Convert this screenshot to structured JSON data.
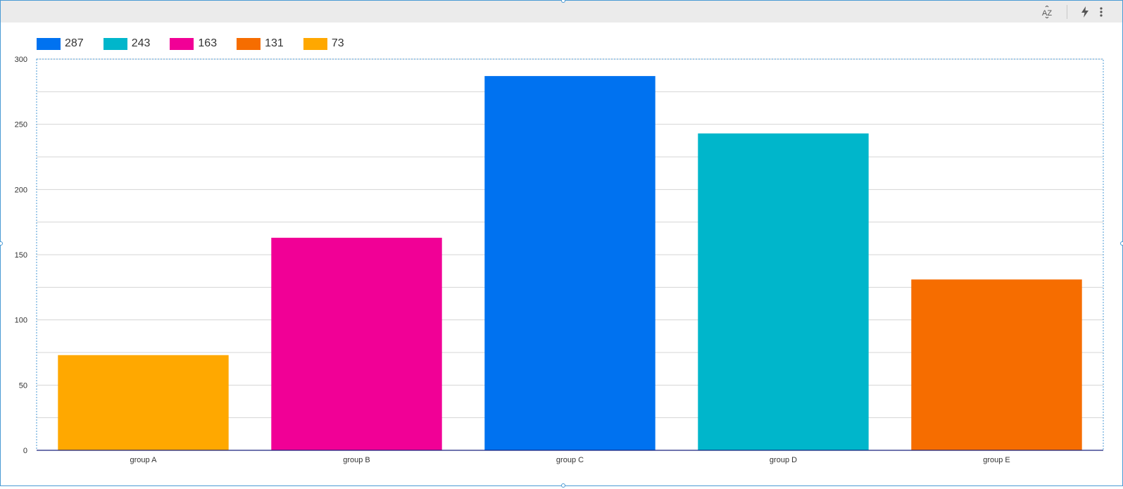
{
  "toolbar": {
    "sort_icon": "sort-az-icon",
    "bolt_icon": "lightning-icon",
    "more_icon": "more-vert-icon"
  },
  "colors": {
    "blue": "#0072f0",
    "teal": "#00b6cb",
    "magenta": "#f10096",
    "orange": "#f66d00",
    "amber": "#ffa800",
    "selection": "#4a9ad4",
    "toolbar_bg": "#ebebeb"
  },
  "legend": [
    {
      "label": "287",
      "color": "#0072f0"
    },
    {
      "label": "243",
      "color": "#00b6cb"
    },
    {
      "label": "163",
      "color": "#f10096"
    },
    {
      "label": "131",
      "color": "#f66d00"
    },
    {
      "label": "73",
      "color": "#ffa800"
    }
  ],
  "chart_data": {
    "type": "bar",
    "categories": [
      "group A",
      "group B",
      "group C",
      "group D",
      "group E"
    ],
    "values": [
      73,
      163,
      287,
      243,
      131
    ],
    "bar_colors": [
      "#ffa800",
      "#f10096",
      "#0072f0",
      "#00b6cb",
      "#f66d00"
    ],
    "ylim": [
      0,
      300
    ],
    "yticks": [
      0,
      50,
      100,
      150,
      200,
      250,
      300
    ],
    "grid": true,
    "legend_position": "top-left"
  }
}
